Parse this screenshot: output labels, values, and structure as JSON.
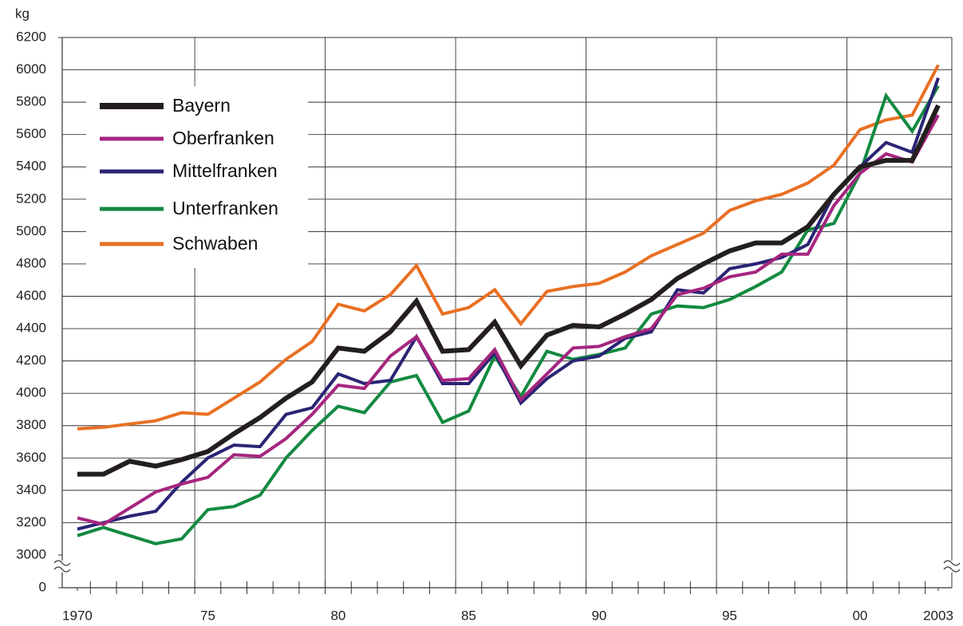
{
  "chart_data": {
    "type": "line",
    "y_label": "kg",
    "x": [
      1970,
      1971,
      1972,
      1973,
      1974,
      1975,
      1976,
      1977,
      1978,
      1979,
      1980,
      1981,
      1982,
      1983,
      1984,
      1985,
      1986,
      1987,
      1988,
      1989,
      1990,
      1991,
      1992,
      1993,
      1994,
      1995,
      1996,
      1997,
      1998,
      1999,
      2000,
      2001,
      2002,
      2003
    ],
    "series": [
      {
        "name": "Bayern",
        "color": "#231f1e",
        "values": [
          3500,
          3500,
          3580,
          3550,
          3590,
          3640,
          3750,
          3850,
          3970,
          4070,
          4280,
          4260,
          4380,
          4570,
          4260,
          4270,
          4440,
          4170,
          4360,
          4420,
          4410,
          4490,
          4580,
          4710,
          4800,
          4880,
          4930,
          4930,
          5030,
          5230,
          5400,
          5440,
          5440,
          5780
        ]
      },
      {
        "name": "Oberfranken",
        "color": "#a5257f",
        "values": [
          3230,
          3190,
          3290,
          3390,
          3440,
          3480,
          3620,
          3610,
          3720,
          3870,
          4050,
          4030,
          4230,
          4350,
          4080,
          4090,
          4270,
          3960,
          4120,
          4280,
          4290,
          4350,
          4400,
          4610,
          4650,
          4720,
          4750,
          4860,
          4860,
          5160,
          5360,
          5480,
          5430,
          5720
        ]
      },
      {
        "name": "Mittelfranken",
        "color": "#2a2475",
        "values": [
          3160,
          3200,
          3240,
          3270,
          3450,
          3600,
          3680,
          3670,
          3870,
          3910,
          4120,
          4060,
          4080,
          4350,
          4060,
          4060,
          4250,
          3940,
          4090,
          4200,
          4230,
          4340,
          4380,
          4640,
          4620,
          4770,
          4800,
          4840,
          4920,
          5230,
          5400,
          5550,
          5490,
          5950
        ]
      },
      {
        "name": "Unterfranken",
        "color": "#138a41",
        "values": [
          3120,
          3170,
          3120,
          3070,
          3100,
          3280,
          3300,
          3370,
          3600,
          3770,
          3920,
          3880,
          4070,
          4110,
          3820,
          3890,
          4230,
          3980,
          4260,
          4210,
          4240,
          4280,
          4490,
          4540,
          4530,
          4580,
          4660,
          4750,
          5010,
          5050,
          5360,
          5840,
          5620,
          5900
        ]
      },
      {
        "name": "Schwaben",
        "color": "#e87024",
        "values": [
          3780,
          3790,
          3810,
          3830,
          3880,
          3870,
          3970,
          4070,
          4210,
          4320,
          4550,
          4510,
          4610,
          4790,
          4490,
          4530,
          4640,
          4430,
          4630,
          4660,
          4680,
          4750,
          4850,
          4920,
          4990,
          5130,
          5190,
          5230,
          5300,
          5410,
          5630,
          5690,
          5720,
          6030
        ]
      }
    ],
    "xlim": [
      1969.42,
      2003.52
    ],
    "xticks": [
      1970,
      {
        "value": 1975,
        "label": "75"
      },
      {
        "value": 1980,
        "label": "80"
      },
      {
        "value": 1985,
        "label": "85"
      },
      {
        "value": 1990,
        "label": "90"
      },
      {
        "value": 1995,
        "label": "95"
      },
      {
        "value": 2000,
        "label": "00"
      },
      2003
    ],
    "ylim": [
      3000,
      6200
    ],
    "yticks": [
      0,
      3000,
      3200,
      3400,
      3600,
      3800,
      4000,
      4200,
      4400,
      4600,
      4800,
      5000,
      5200,
      5400,
      5600,
      5800,
      6000,
      6200
    ],
    "axis_break": true,
    "grid": true,
    "legend": "upper left"
  }
}
